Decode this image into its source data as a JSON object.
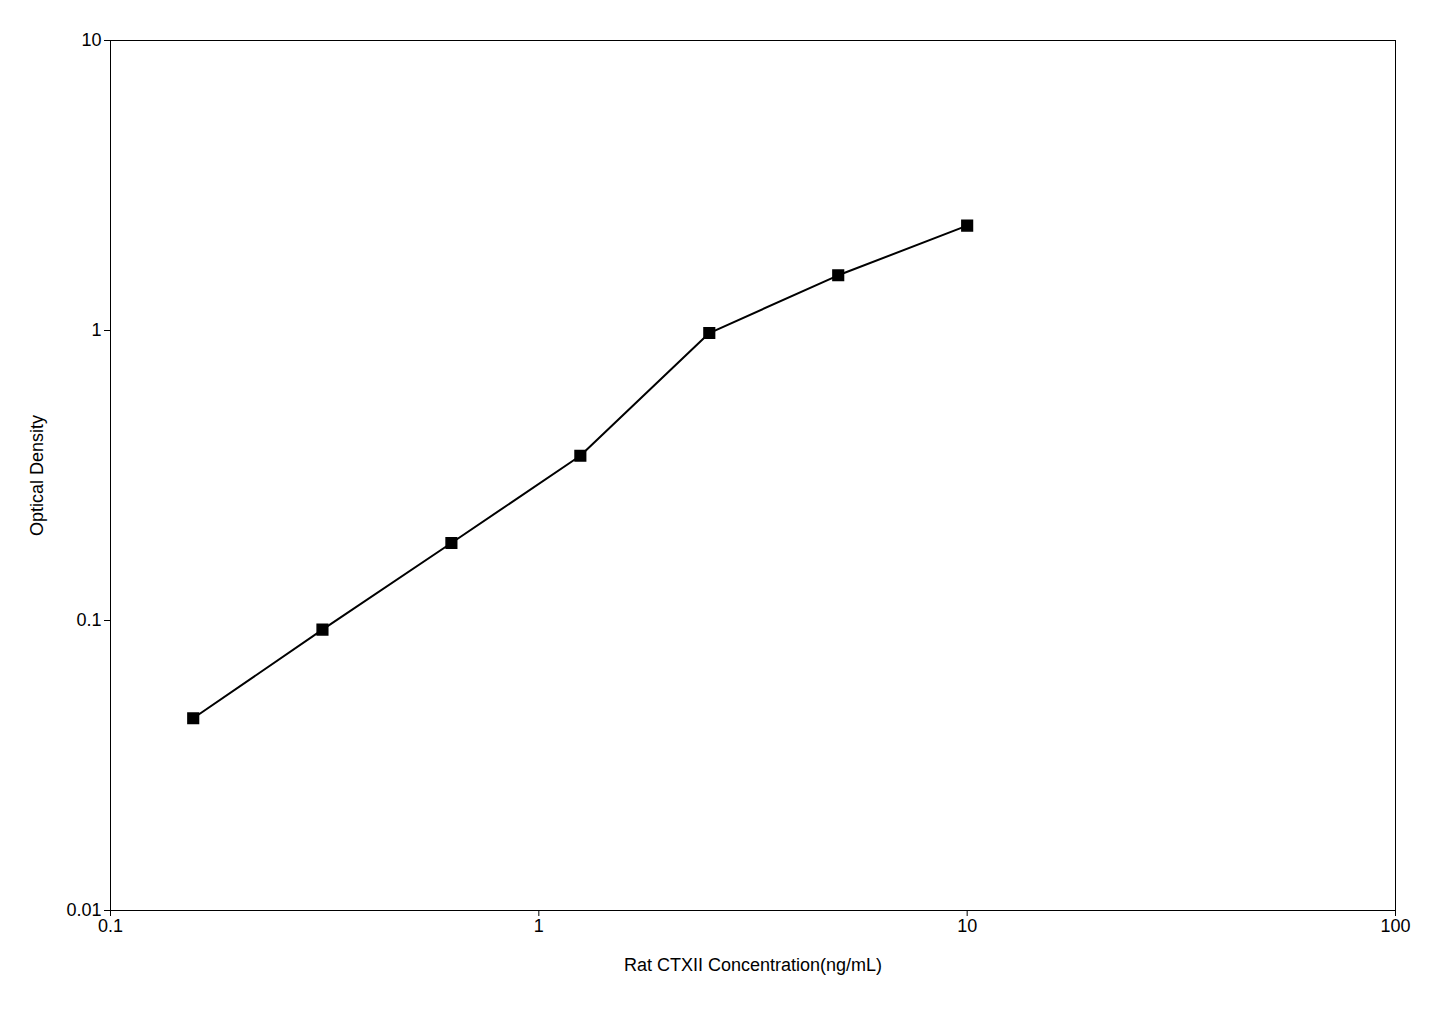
{
  "chart_data": {
    "type": "line",
    "x": [
      0.156,
      0.3125,
      0.625,
      1.25,
      2.5,
      5.0,
      10.0
    ],
    "values": [
      0.046,
      0.093,
      0.185,
      0.37,
      0.98,
      1.55,
      2.3
    ],
    "xlabel": "Rat CTXII Concentration(ng/mL)",
    "ylabel": "Optical Density",
    "xlim": [
      0.1,
      100
    ],
    "ylim": [
      0.01,
      10
    ],
    "xticks": [
      0.1,
      1,
      10,
      100
    ],
    "yticks": [
      0.01,
      0.1,
      1,
      10
    ],
    "log": true,
    "grid": false,
    "color": "#000000",
    "marker": "square"
  }
}
